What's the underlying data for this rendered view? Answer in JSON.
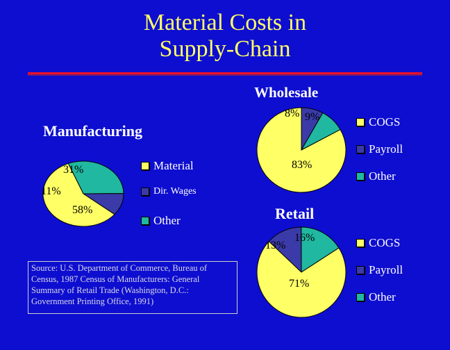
{
  "title_line1": "Material Costs in",
  "title_line2": "Supply-Chain",
  "colors": {
    "background": "#0e0ed0",
    "title": "#ffff66",
    "yellow": "#ffff66",
    "teal": "#20b8a0",
    "purple": "#3a3aa8",
    "rule": "#e8102a"
  },
  "chart_data": [
    {
      "type": "pie",
      "title": "Manufacturing",
      "slices": [
        {
          "label": "Material",
          "value": 58,
          "text": "58%",
          "color": "#ffff66"
        },
        {
          "label": "Dir. Wages",
          "value": 11,
          "text": "11%",
          "color": "#3a3aa8"
        },
        {
          "label": "Other",
          "value": 31,
          "text": "31%",
          "color": "#20b8a0"
        }
      ],
      "legend": [
        "Material",
        "Dir. Wages",
        "Other"
      ]
    },
    {
      "type": "pie",
      "title": "Wholesale",
      "slices": [
        {
          "label": "COGS",
          "value": 83,
          "text": "83%",
          "color": "#ffff66"
        },
        {
          "label": "Payroll",
          "value": 8,
          "text": "8%",
          "color": "#3a3aa8"
        },
        {
          "label": "Other",
          "value": 9,
          "text": "9%",
          "color": "#20b8a0"
        }
      ],
      "legend": [
        "COGS",
        "Payroll",
        "Other"
      ]
    },
    {
      "type": "pie",
      "title": "Retail",
      "slices": [
        {
          "label": "COGS",
          "value": 71,
          "text": "71%",
          "color": "#ffff66"
        },
        {
          "label": "Payroll",
          "value": 13,
          "text": "13%",
          "color": "#3a3aa8"
        },
        {
          "label": "Other",
          "value": 16,
          "text": "16%",
          "color": "#20b8a0"
        }
      ],
      "legend": [
        "COGS",
        "Payroll",
        "Other"
      ]
    }
  ],
  "source_note": "Source: U.S. Department of Commerce, Bureau of Census, 1987 Census of Manufacturers: General Summary of Retail Trade (Washington, D.C.: Government Printing Office, 1991)"
}
